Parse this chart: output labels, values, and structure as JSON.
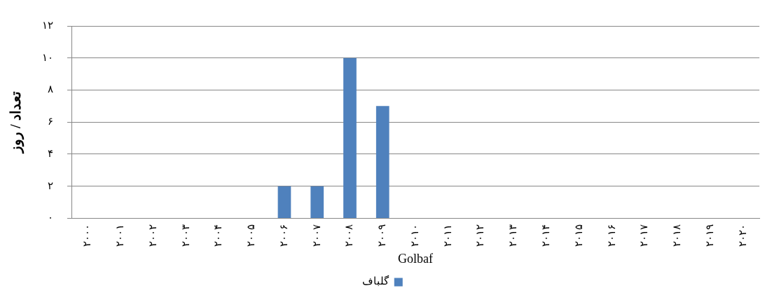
{
  "chart_data": {
    "type": "bar",
    "categories": [
      "۲۰۰۰",
      "۲۰۰۱",
      "۲۰۰۲",
      "۲۰۰۳",
      "۲۰۰۴",
      "۲۰۰۵",
      "۲۰۰۶",
      "۲۰۰۷",
      "۲۰۰۸",
      "۲۰۰۹",
      "۲۰۱۰",
      "۲۰۱۱",
      "۲۰۱۲",
      "۲۰۱۳",
      "۲۰۱۴",
      "۲۰۱۵",
      "۲۰۱۶",
      "۲۰۱۷",
      "۲۰۱۸",
      "۲۰۱۹",
      "۲۰۲۰"
    ],
    "series": [
      {
        "name": "گلباف",
        "color": "#4f81bd",
        "values": [
          0,
          0,
          0,
          0,
          0,
          0,
          2,
          2,
          10,
          7,
          0,
          0,
          0,
          0,
          0,
          0,
          0,
          0,
          0,
          0,
          0
        ]
      }
    ],
    "xlabel": "Golbaf",
    "ylabel": "تعداد / روز",
    "ylim": [
      0,
      12
    ],
    "yticks": [
      {
        "value": 0,
        "label": "۰"
      },
      {
        "value": 2,
        "label": "۲"
      },
      {
        "value": 4,
        "label": "۴"
      },
      {
        "value": 6,
        "label": "۶"
      },
      {
        "value": 8,
        "label": "۸"
      },
      {
        "value": 10,
        "label": "۱۰"
      },
      {
        "value": 12,
        "label": "۱۲"
      }
    ],
    "grid": "y",
    "legend": "bottom"
  }
}
